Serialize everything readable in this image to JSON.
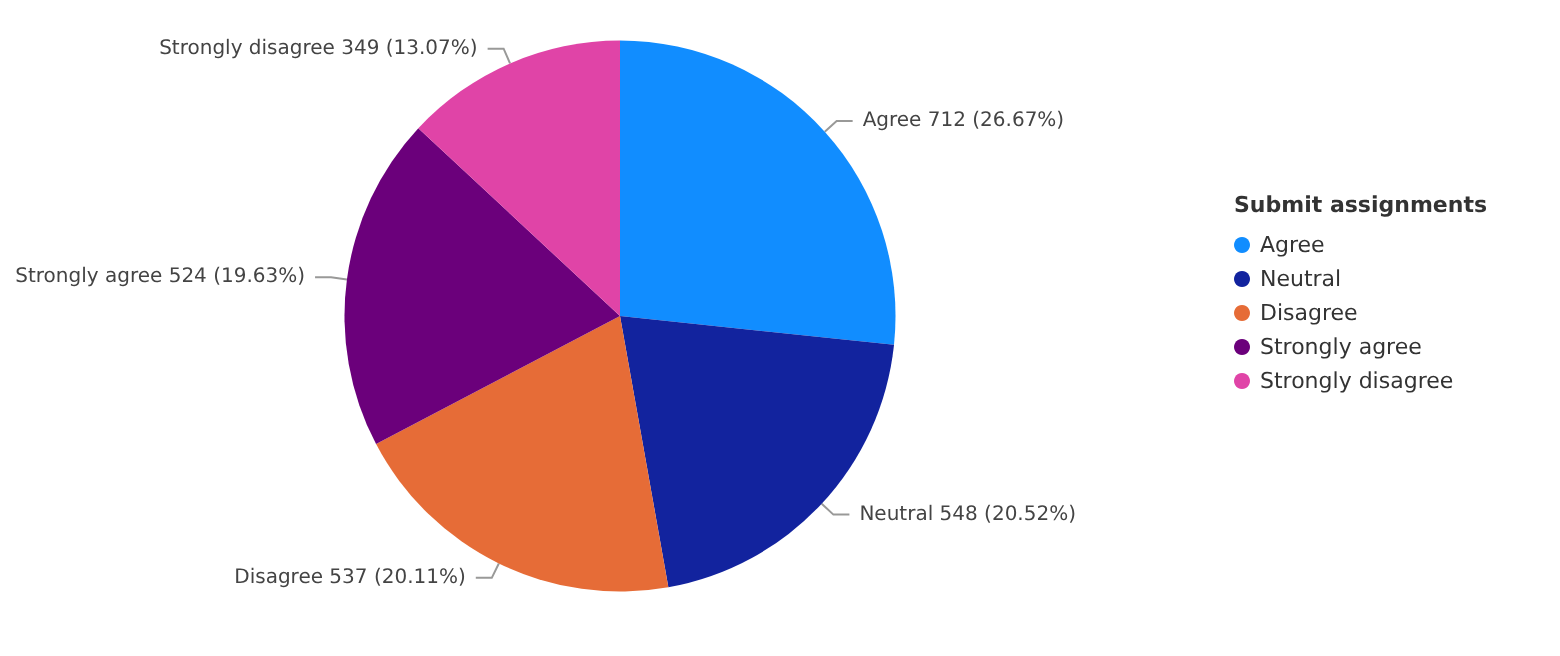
{
  "chart_data": {
    "type": "pie",
    "legend_title": "Submit assignments",
    "legend": "right",
    "categories": [
      "Agree",
      "Neutral",
      "Disagree",
      "Strongly agree",
      "Strongly disagree"
    ],
    "values": [
      712,
      548,
      537,
      524,
      349
    ],
    "value_labels": [
      "712 (26.67%)",
      "548 (20.52%)",
      "537 (20.11%)",
      "524 (19.63%)",
      "349 (13.07%)"
    ],
    "colors": [
      "#118dff",
      "#12239e",
      "#e66c37",
      "#6b007b",
      "#e044a7"
    ]
  }
}
